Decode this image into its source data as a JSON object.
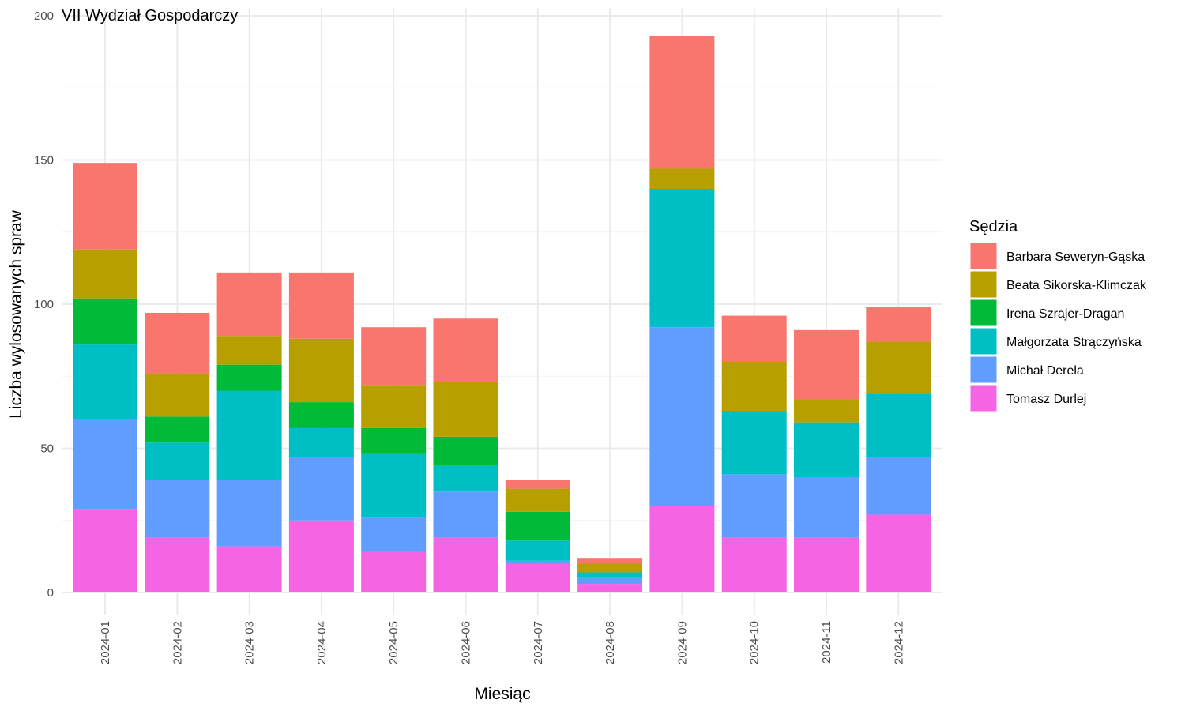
{
  "chart_data": {
    "type": "bar",
    "stacked": true,
    "title": "VII Wydział Gospodarczy",
    "xlabel": "Miesiąc",
    "ylabel": "Liczba wylosowanych spraw",
    "ylim": [
      0,
      200
    ],
    "yticks": [
      0,
      50,
      100,
      150,
      200
    ],
    "grid": true,
    "legend_title": "Sędzia",
    "legend_position": "right",
    "categories": [
      "2024-01",
      "2024-02",
      "2024-03",
      "2024-04",
      "2024-05",
      "2024-06",
      "2024-07",
      "2024-08",
      "2024-09",
      "2024-10",
      "2024-11",
      "2024-12"
    ],
    "series": [
      {
        "name": "Tomasz Durlej",
        "color": "#F564E3",
        "values": [
          29,
          19,
          16,
          25,
          14,
          19,
          10,
          3,
          30,
          19,
          19,
          27
        ]
      },
      {
        "name": "Michał Derela",
        "color": "#619CFF",
        "values": [
          31,
          20,
          23,
          22,
          12,
          16,
          1,
          2,
          62,
          22,
          21,
          20
        ]
      },
      {
        "name": "Małgorzata Strączyńska",
        "color": "#00BFC4",
        "values": [
          26,
          13,
          31,
          10,
          22,
          9,
          7,
          2,
          48,
          22,
          19,
          22
        ]
      },
      {
        "name": "Irena Szrajer-Dragan",
        "color": "#00BA38",
        "values": [
          16,
          9,
          9,
          9,
          9,
          10,
          10,
          0,
          0,
          0,
          0,
          0
        ]
      },
      {
        "name": "Beata Sikorska-Klimczak",
        "color": "#B79F00",
        "values": [
          17,
          15,
          10,
          22,
          15,
          19,
          8,
          3,
          7,
          17,
          8,
          18
        ]
      },
      {
        "name": "Barbara Seweryn-Gąska",
        "color": "#F8766D",
        "values": [
          30,
          21,
          22,
          23,
          20,
          22,
          3,
          2,
          46,
          16,
          24,
          12
        ]
      }
    ],
    "legend_order": [
      "Barbara Seweryn-Gąska",
      "Beata Sikorska-Klimczak",
      "Irena Szrajer-Dragan",
      "Małgorzata Strączyńska",
      "Michał Derela",
      "Tomasz Durlej"
    ]
  }
}
